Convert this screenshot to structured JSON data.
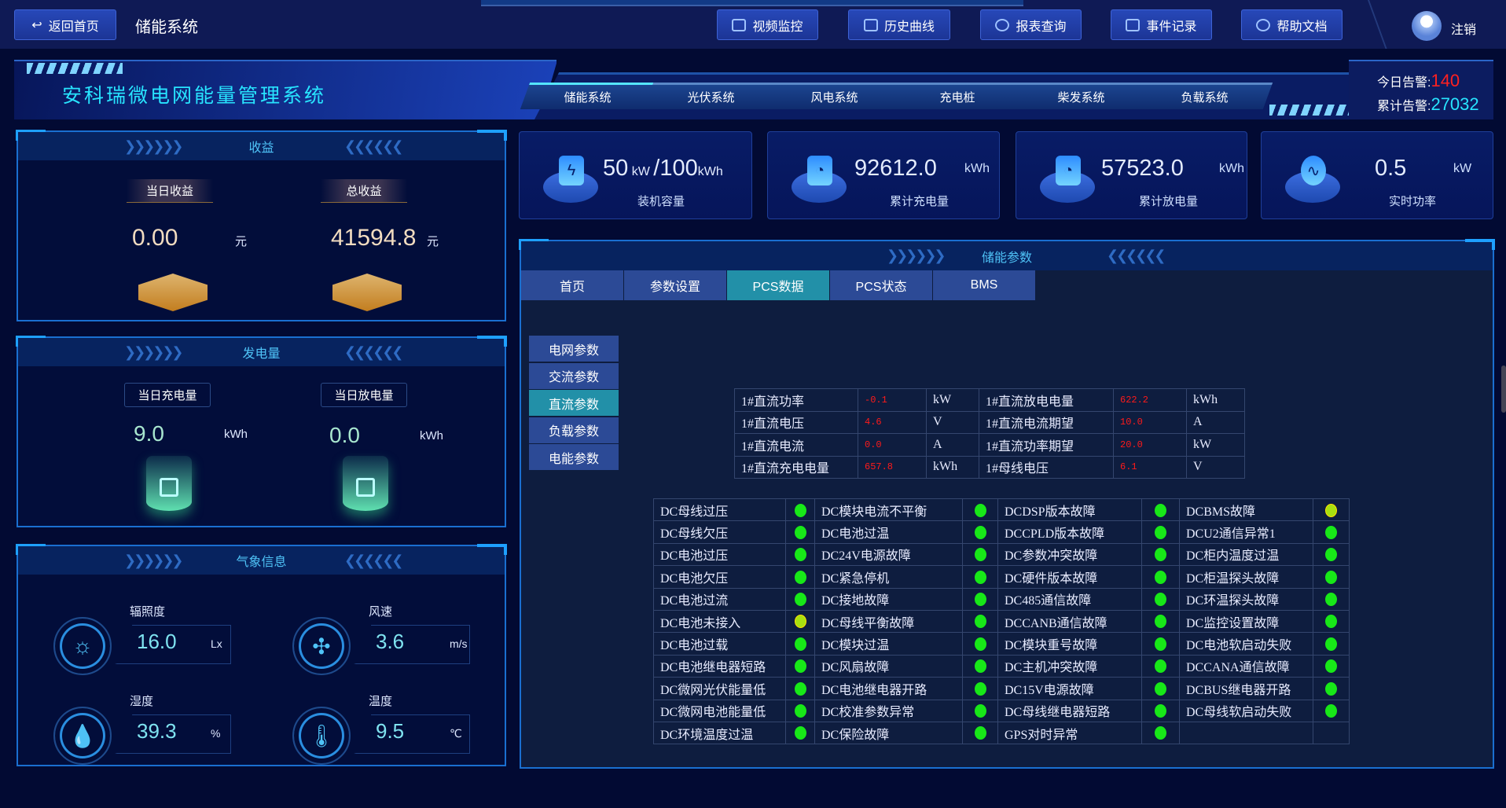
{
  "topbar": {
    "back": "返回首页",
    "system": "储能系统",
    "buttons": [
      "视频监控",
      "历史曲线",
      "报表查询",
      "事件记录",
      "帮助文档"
    ],
    "logout": "注销"
  },
  "header": {
    "title": "安科瑞微电网能量管理系统",
    "tabs": [
      "储能系统",
      "光伏系统",
      "风电系统",
      "充电桩",
      "柴发系统",
      "负载系统"
    ],
    "active_tab": 0,
    "alarm_today_label": "今日告警:",
    "alarm_today": "140",
    "alarm_total_label": "累计告警:",
    "alarm_total": "27032",
    "alarm_today_color": "#ff2020",
    "alarm_total_color": "#28e4ff"
  },
  "income": {
    "title": "收益",
    "daily_label": "当日收益",
    "daily_value": "0.00",
    "total_label": "总收益",
    "total_value": "41594.8",
    "unit": "元"
  },
  "generation": {
    "title": "发电量",
    "charge_label": "当日充电量",
    "charge_value": "9.0",
    "discharge_label": "当日放电量",
    "discharge_value": "0.0",
    "unit": "kWh"
  },
  "weather": {
    "title": "气象信息",
    "items": [
      {
        "label": "辐照度",
        "value": "16.0",
        "unit": "Lx",
        "icon": "sun-icon"
      },
      {
        "label": "风速",
        "value": "3.6",
        "unit": "m/s",
        "icon": "fan-icon"
      },
      {
        "label": "湿度",
        "value": "39.3",
        "unit": "%",
        "icon": "water-drop-icon"
      },
      {
        "label": "温度",
        "value": "9.5",
        "unit": "℃",
        "icon": "thermometer-icon"
      }
    ]
  },
  "cards": [
    {
      "value": "50",
      "unit1": "kW",
      "sep": "/100",
      "unit2": "kWh",
      "label": "装机容量",
      "icon": "battery-bolt-icon"
    },
    {
      "value": "92612.0",
      "unit": "kWh",
      "label": "累计充电量",
      "icon": "gauge-icon"
    },
    {
      "value": "57523.0",
      "unit": "kWh",
      "label": "累计放电量",
      "icon": "gauge-icon"
    },
    {
      "value": "0.5",
      "unit": "kW",
      "label": "实时功率",
      "icon": "pulse-icon"
    }
  ],
  "params": {
    "title": "储能参数",
    "tabs": [
      "首页",
      "参数设置",
      "PCS数据",
      "PCS状态",
      "BMS"
    ],
    "active_tab": 2,
    "side_menu": [
      "电网参数",
      "交流参数",
      "直流参数",
      "负载参数",
      "电能参数"
    ],
    "active_side": 2,
    "table": [
      [
        "1#直流功率",
        "-0.1",
        "kW",
        "1#直流放电电量",
        "622.2",
        "kWh"
      ],
      [
        "1#直流电压",
        "4.6",
        "V",
        "1#直流电流期望",
        "10.0",
        "A"
      ],
      [
        "1#直流电流",
        "0.0",
        "A",
        "1#直流功率期望",
        "20.0",
        "kW"
      ],
      [
        "1#直流充电电量",
        "657.8",
        "kWh",
        "1#母线电压",
        "6.1",
        "V"
      ]
    ],
    "faults": [
      [
        [
          "DC母线过压",
          "ok"
        ],
        [
          "DC模块电流不平衡",
          "ok"
        ],
        [
          "DCDSP版本故障",
          "ok"
        ],
        [
          "DCBMS故障",
          "warn"
        ]
      ],
      [
        [
          "DC母线欠压",
          "ok"
        ],
        [
          "DC电池过温",
          "ok"
        ],
        [
          "DCCPLD版本故障",
          "ok"
        ],
        [
          "DCU2通信异常1",
          "ok"
        ]
      ],
      [
        [
          "DC电池过压",
          "ok"
        ],
        [
          "DC24V电源故障",
          "ok"
        ],
        [
          "DC参数冲突故障",
          "ok"
        ],
        [
          "DC柜内温度过温",
          "ok"
        ]
      ],
      [
        [
          "DC电池欠压",
          "ok"
        ],
        [
          "DC紧急停机",
          "ok"
        ],
        [
          "DC硬件版本故障",
          "ok"
        ],
        [
          "DC柜温探头故障",
          "ok"
        ]
      ],
      [
        [
          "DC电池过流",
          "ok"
        ],
        [
          "DC接地故障",
          "ok"
        ],
        [
          "DC485通信故障",
          "ok"
        ],
        [
          "DC环温探头故障",
          "ok"
        ]
      ],
      [
        [
          "DC电池未接入",
          "warn"
        ],
        [
          "DC母线平衡故障",
          "ok"
        ],
        [
          "DCCANB通信故障",
          "ok"
        ],
        [
          "DC监控设置故障",
          "ok"
        ]
      ],
      [
        [
          "DC电池过载",
          "ok"
        ],
        [
          "DC模块过温",
          "ok"
        ],
        [
          "DC模块重号故障",
          "ok"
        ],
        [
          "DC电池软启动失败",
          "ok"
        ]
      ],
      [
        [
          "DC电池继电器短路",
          "ok"
        ],
        [
          "DC风扇故障",
          "ok"
        ],
        [
          "DC主机冲突故障",
          "ok"
        ],
        [
          "DCCANA通信故障",
          "ok"
        ]
      ],
      [
        [
          "DC微网光伏能量低",
          "ok"
        ],
        [
          "DC电池继电器开路",
          "ok"
        ],
        [
          "DC15V电源故障",
          "ok"
        ],
        [
          "DCBUS继电器开路",
          "ok"
        ]
      ],
      [
        [
          "DC微网电池能量低",
          "ok"
        ],
        [
          "DC校准参数异常",
          "ok"
        ],
        [
          "DC母线继电器短路",
          "ok"
        ],
        [
          "DC母线软启动失败",
          "ok"
        ]
      ],
      [
        [
          "DC环境温度过温",
          "ok"
        ],
        [
          "DC保险故障",
          "ok"
        ],
        [
          "GPS对时异常",
          "ok"
        ],
        null
      ]
    ]
  }
}
